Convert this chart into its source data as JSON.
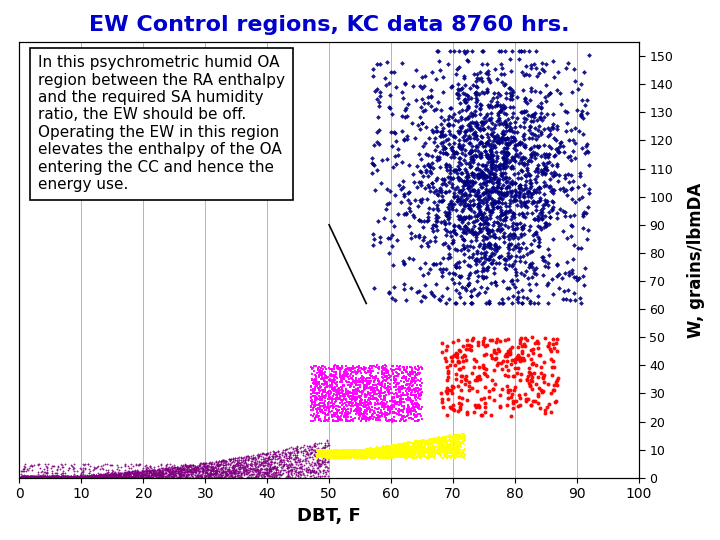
{
  "title": "EW Control regions, KC data 8760 hrs.",
  "title_color": "#0000CC",
  "title_fontsize": 16,
  "xlabel": "DBT, F",
  "ylabel": "W, grains/lbmDA",
  "xlim": [
    0,
    100
  ],
  "ylim": [
    0,
    155
  ],
  "xticks": [
    0,
    10,
    20,
    30,
    40,
    50,
    60,
    70,
    80,
    90,
    100
  ],
  "yticks": [
    0,
    10,
    20,
    30,
    40,
    50,
    60,
    70,
    80,
    90,
    100,
    110,
    120,
    130,
    140,
    150
  ],
  "annotation_text": "In this psychrometric humid OA\nregion between the RA enthalpy\nand the required SA humidity\nratio, the EW should be off.\nOperating the EW in this region\nelevates the enthalpy of the OA\nentering the CC and hence the\nenergy use.",
  "annotation_fontsize": 11,
  "bg_color": "#FFFFFF",
  "grid_color": "#AAAAAA",
  "colors": {
    "dark_blue": "#000080",
    "magenta": "#FF00FF",
    "yellow": "#FFFF00",
    "red": "#FF0000",
    "purple": "#800080"
  },
  "random_seed": 42,
  "line_x": [
    50,
    56
  ],
  "line_y": [
    90,
    62
  ]
}
